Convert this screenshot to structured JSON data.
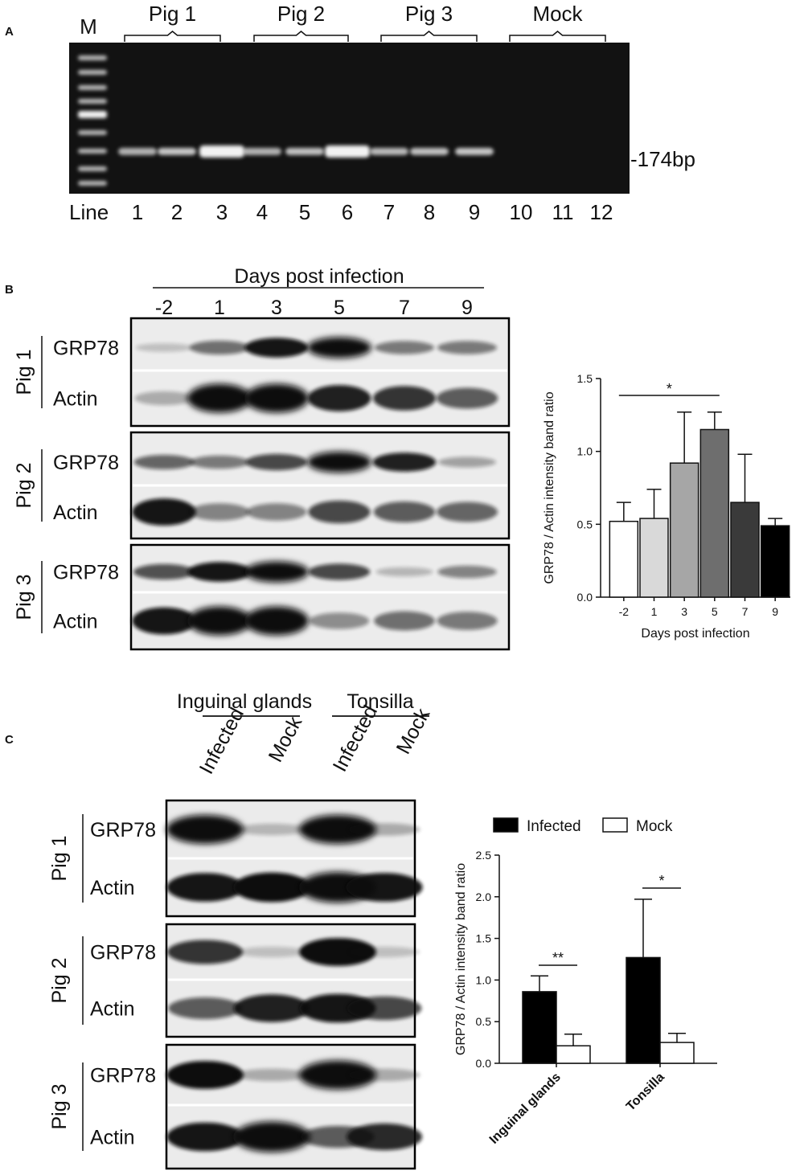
{
  "panels": {
    "a": "A",
    "b": "B",
    "c": "C"
  },
  "panel_a": {
    "marker": "M",
    "groups": [
      "Pig 1",
      "Pig 2",
      "Pig 3",
      "Mock"
    ],
    "line_label": "Line",
    "lanes": [
      "1",
      "2",
      "3",
      "4",
      "5",
      "6",
      "7",
      "8",
      "9",
      "10",
      "11",
      "12"
    ],
    "size_label": "-174bp",
    "band_intensity": [
      0.55,
      0.7,
      1.0,
      0.55,
      0.65,
      1.0,
      0.6,
      0.65,
      0.7,
      0,
      0,
      0
    ]
  },
  "panel_b": {
    "header": "Days post infection",
    "days": [
      "-2",
      "1",
      "3",
      "5",
      "7",
      "9"
    ],
    "pigs": [
      "Pig 1",
      "Pig 2",
      "Pig 3"
    ],
    "rows": [
      "GRP78",
      "Actin"
    ],
    "blots": [
      {
        "grp78": [
          0.05,
          0.45,
          0.9,
          1.0,
          0.4,
          0.4
        ],
        "actin": [
          0.15,
          1.0,
          1.0,
          0.85,
          0.75,
          0.55
        ]
      },
      {
        "grp78": [
          0.5,
          0.4,
          0.65,
          1.0,
          0.85,
          0.2
        ],
        "actin": [
          0.9,
          0.35,
          0.35,
          0.65,
          0.55,
          0.5
        ]
      },
      {
        "grp78": [
          0.6,
          0.9,
          1.0,
          0.65,
          0.1,
          0.35
        ],
        "actin": [
          0.9,
          1.0,
          1.0,
          0.3,
          0.45,
          0.4
        ]
      }
    ]
  },
  "panel_c": {
    "tissues": [
      "Inguinal glands",
      "Tonsilla"
    ],
    "conditions": [
      "Infected",
      "Mock",
      "Infected",
      "Mock"
    ],
    "pigs": [
      "Pig 1",
      "Pig 2",
      "Pig 3"
    ],
    "rows": [
      "GRP78",
      "Actin"
    ],
    "blots": [
      {
        "grp78": [
          1.0,
          0.1,
          1.0,
          0.15
        ],
        "actin": [
          0.9,
          0.95,
          1.0,
          0.9
        ]
      },
      {
        "grp78": [
          0.75,
          0.05,
          0.95,
          0.05
        ],
        "actin": [
          0.55,
          0.85,
          0.9,
          0.65
        ]
      },
      {
        "grp78": [
          0.95,
          0.15,
          1.0,
          0.15
        ],
        "actin": [
          0.9,
          1.0,
          0.55,
          0.8
        ]
      }
    ]
  },
  "chart_data": [
    {
      "type": "bar",
      "categories": [
        "-2",
        "1",
        "3",
        "5",
        "7",
        "9"
      ],
      "values": [
        0.52,
        0.54,
        0.92,
        1.15,
        0.65,
        0.49
      ],
      "errors": [
        0.13,
        0.2,
        0.35,
        0.12,
        0.33,
        0.05
      ],
      "bar_colors": [
        "#ffffff",
        "#d9d9d9",
        "#a6a6a6",
        "#6e6e6e",
        "#3a3a3a",
        "#000000"
      ],
      "xlabel": "Days post infection",
      "ylabel": "GRP78 / Actin intensity band ratio",
      "ylim": [
        0,
        1.5
      ],
      "yticks": [
        "0.0",
        "0.5",
        "1.0",
        "1.5"
      ],
      "significance": [
        {
          "from": "-2",
          "to": "5",
          "label": "*"
        }
      ]
    },
    {
      "type": "bar",
      "categories": [
        "Inguinal glands",
        "Tonsilla"
      ],
      "series": [
        {
          "name": "Infected",
          "color": "#000000",
          "values": [
            0.86,
            1.27
          ],
          "errors": [
            0.19,
            0.7
          ]
        },
        {
          "name": "Mock",
          "color": "#ffffff",
          "values": [
            0.21,
            0.25
          ],
          "errors": [
            0.14,
            0.11
          ]
        }
      ],
      "ylabel": "GRP78 / Actin intensity band ratio",
      "ylim": [
        0,
        2.5
      ],
      "yticks": [
        "0.0",
        "0.5",
        "1.0",
        "1.5",
        "2.0",
        "2.5"
      ],
      "legend_position": "top",
      "significance": [
        {
          "category": "Inguinal glands",
          "label": "**"
        },
        {
          "category": "Tonsilla",
          "label": "*"
        }
      ]
    }
  ]
}
